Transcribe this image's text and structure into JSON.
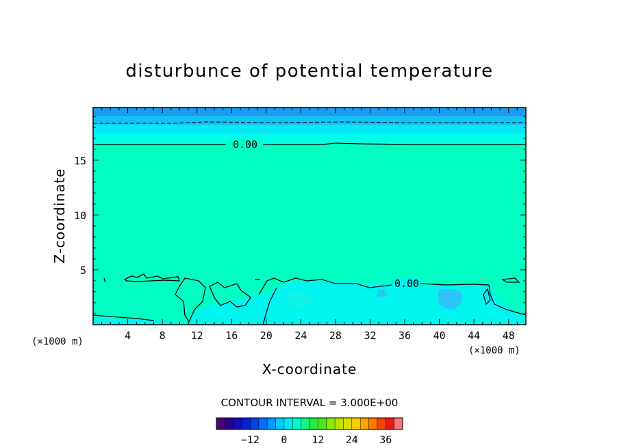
{
  "chart_data": {
    "type": "contour",
    "title": "disturbunce of potential temperature",
    "xlabel": "X-coordinate",
    "ylabel": "Z-coordinate",
    "x_unit": "(×1000 m)",
    "y_unit": "(×1000 m)",
    "xlim": [
      0,
      50
    ],
    "ylim": [
      0,
      19.8
    ],
    "xticks": [
      4,
      8,
      12,
      16,
      20,
      24,
      28,
      32,
      36,
      40,
      44,
      48
    ],
    "yticks": [
      5,
      10,
      15
    ],
    "contour_interval_label": "CONTOUR INTERVAL = 3.000E+00",
    "contour_labels": [
      {
        "text": "0.00",
        "x": 17.6,
        "z": 16.6
      },
      {
        "text": "0.00",
        "x": 36.4,
        "z": 3.7
      }
    ],
    "colorbar": {
      "ticks": [
        -12,
        0,
        12,
        24,
        36
      ],
      "range": [
        -24,
        42
      ],
      "interval": 3
    },
    "field_bands": [
      {
        "z_from": 19.0,
        "z_to": 19.8,
        "color": "#1a9cf0"
      },
      {
        "z_from": 18.2,
        "z_to": 19.0,
        "color": "#0fc4f5"
      },
      {
        "z_from": 17.4,
        "z_to": 18.2,
        "color": "#06e8f7"
      },
      {
        "z_from": 16.6,
        "z_to": 17.4,
        "color": "#00ffea"
      },
      {
        "z_from": 0.0,
        "z_to": 16.6,
        "color": "#00ffc2"
      }
    ]
  }
}
